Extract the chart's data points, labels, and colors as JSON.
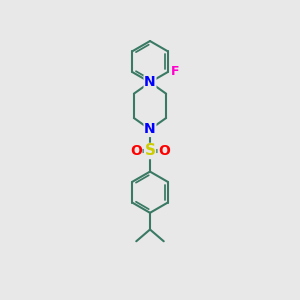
{
  "bg_color": "#e8e8e8",
  "bond_color": "#3a7a64",
  "bond_width": 1.5,
  "N_color": "#0000ff",
  "S_color": "#cccc00",
  "O_color": "#ff0000",
  "F_color": "#ff00cc",
  "font_size": 9,
  "fig_size": [
    3.0,
    3.0
  ],
  "dpi": 100,
  "xlim": [
    0,
    10
  ],
  "ylim": [
    0,
    15
  ]
}
